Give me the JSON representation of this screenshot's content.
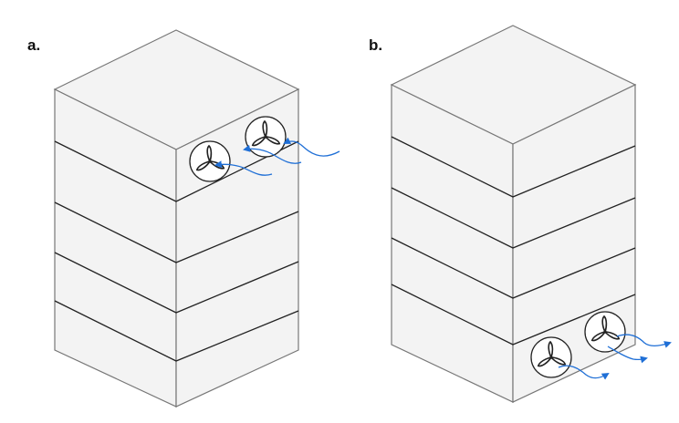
{
  "panels": [
    {
      "label": "a."
    },
    {
      "label": "b."
    }
  ],
  "colors": {
    "face_fill": "#f3f3f3",
    "edge": "#777777",
    "floor_line": "#222222",
    "airflow": "#1f6fd6"
  }
}
